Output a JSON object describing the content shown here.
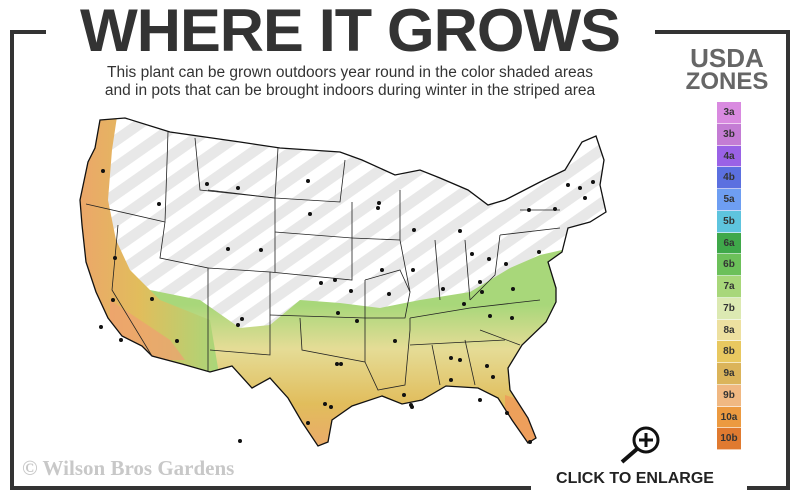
{
  "header": {
    "title": "WHERE IT GROWS",
    "subtitle_line1": "This plant can be grown outdoors year round in the color shaded areas",
    "subtitle_line2": "and in pots that can be brought indoors during winter in the striped area"
  },
  "legend": {
    "title_line1": "USDA",
    "title_line2": "ZONES",
    "zones": [
      {
        "label": "3a",
        "color": "#d98ae0"
      },
      {
        "label": "3b",
        "color": "#c47cd4"
      },
      {
        "label": "4a",
        "color": "#9a62e6"
      },
      {
        "label": "4b",
        "color": "#5b70e0"
      },
      {
        "label": "5a",
        "color": "#6e9ef2"
      },
      {
        "label": "5b",
        "color": "#5ec4de"
      },
      {
        "label": "6a",
        "color": "#3fa84a"
      },
      {
        "label": "6b",
        "color": "#6cc05a"
      },
      {
        "label": "7a",
        "color": "#a8d77a"
      },
      {
        "label": "7b",
        "color": "#dce9b2"
      },
      {
        "label": "8a",
        "color": "#ede0a0"
      },
      {
        "label": "8b",
        "color": "#e8c860"
      },
      {
        "label": "9a",
        "color": "#dbb45a"
      },
      {
        "label": "9b",
        "color": "#f0b882"
      },
      {
        "label": "10a",
        "color": "#ec9a40"
      },
      {
        "label": "10b",
        "color": "#e07a30"
      }
    ]
  },
  "footer": {
    "copyright": "© Wilson Bros Gardens",
    "enlarge_label": "CLICK TO ENLARGE",
    "enlarge_icon": "zoom-in-magnifier-icon"
  },
  "colors": {
    "frame": "#333333",
    "stripe": "#e6e6e6"
  }
}
